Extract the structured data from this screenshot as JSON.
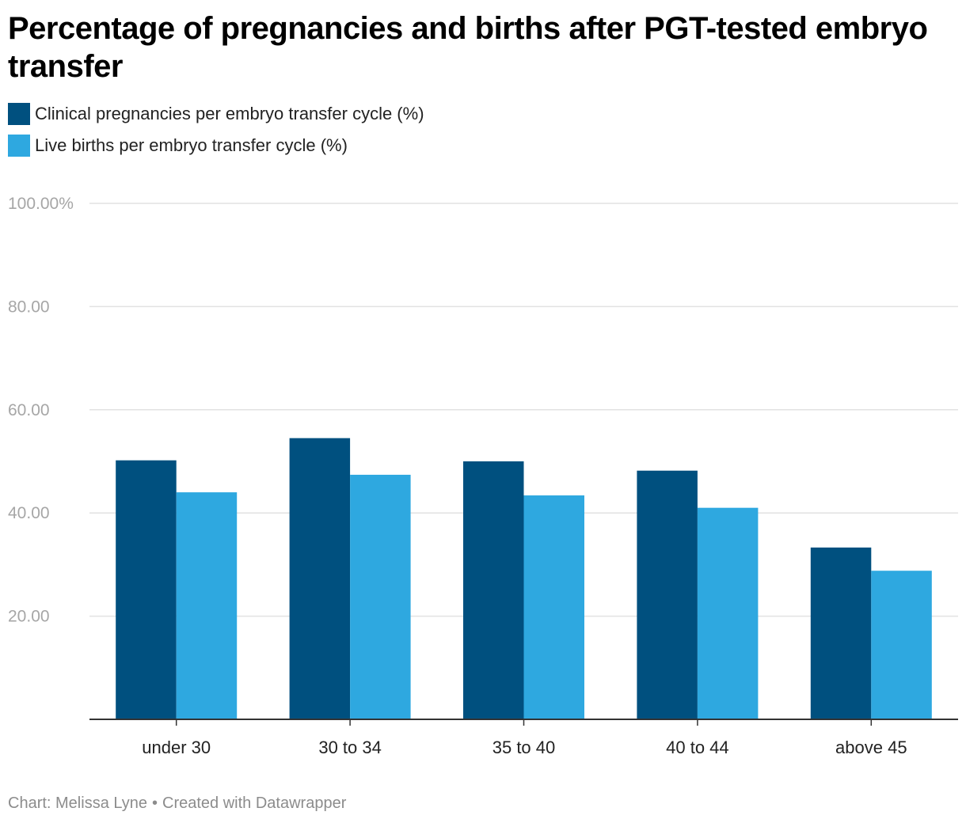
{
  "title": "Percentage of pregnancies and births after PGT-tested embryo transfer",
  "legend": [
    {
      "label": "Clinical pregnancies per embryo transfer cycle (%)",
      "color": "#00507f"
    },
    {
      "label": "Live births per embryo transfer cycle (%)",
      "color": "#2ea8e0"
    }
  ],
  "footer": {
    "source": "Chart: Melissa Lyne",
    "separator": "•",
    "credit": "Created with Datawrapper"
  },
  "chart_data": {
    "type": "bar",
    "title": "Percentage of pregnancies and births after PGT-tested embryo transfer",
    "xlabel": "",
    "ylabel": "",
    "ylim": [
      0,
      100
    ],
    "yticks": [
      20,
      40,
      60,
      80,
      100
    ],
    "ytick_labels": [
      "20.00",
      "40.00",
      "60.00",
      "80.00",
      "100.00%"
    ],
    "grid": true,
    "legend_position": "top-left",
    "categories": [
      "under 30",
      "30 to 34",
      "35 to 40",
      "40 to 44",
      "above 45"
    ],
    "series": [
      {
        "name": "Clinical pregnancies per embryo transfer cycle (%)",
        "color": "#00507f",
        "values": [
          50.2,
          54.5,
          50.0,
          48.2,
          33.3
        ]
      },
      {
        "name": "Live births per embryo transfer cycle (%)",
        "color": "#2ea8e0",
        "values": [
          44.0,
          47.4,
          43.4,
          41.0,
          28.8
        ]
      }
    ]
  }
}
